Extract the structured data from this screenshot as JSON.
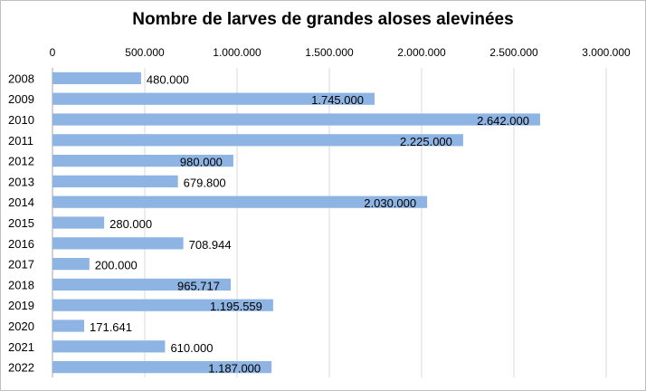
{
  "chart_data": {
    "type": "bar",
    "orientation": "horizontal",
    "title": "Nombre de larves de grandes aloses alevinées",
    "categories": [
      "2008",
      "2009",
      "2010",
      "2011",
      "2012",
      "2013",
      "2014",
      "2015",
      "2016",
      "2017",
      "2018",
      "2019",
      "2020",
      "2021",
      "2022"
    ],
    "values": [
      480000,
      1745000,
      2642000,
      2225000,
      980000,
      679800,
      2030000,
      280000,
      708944,
      200000,
      965717,
      1195559,
      171641,
      610000,
      1187000
    ],
    "data_labels": [
      "480.000",
      "1.745.000",
      "2.642.000",
      "2.225.000",
      "980.000",
      "679.800",
      "2.030.000",
      "280.000",
      "708.944",
      "200.000",
      "965.717",
      "1.195.559",
      "171.641",
      "610.000",
      "1.187.000"
    ],
    "xlim": [
      0,
      3000000
    ],
    "x_ticks": [
      0,
      500000,
      1000000,
      1500000,
      2000000,
      2500000,
      3000000
    ],
    "x_tick_labels": [
      "0",
      "500.000",
      "1.000.000",
      "1.500.000",
      "2.000.000",
      "2.500.000",
      "3.000.000"
    ],
    "x_axis_position": "top",
    "grid": true,
    "legend": "none",
    "bar_color": "#8eb4e3",
    "grid_color": "#d9d9d9",
    "axis_color": "#a6a6a6"
  }
}
